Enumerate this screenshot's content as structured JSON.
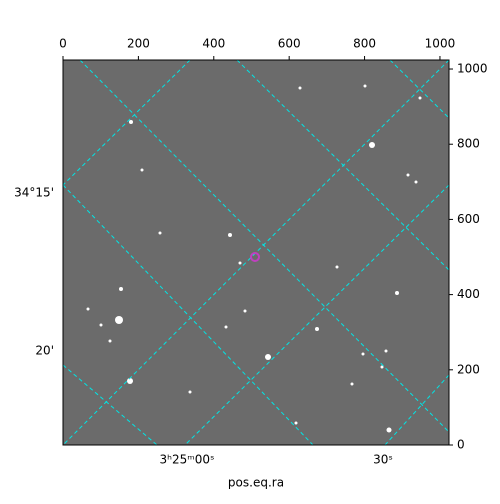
{
  "chart_data": {
    "type": "image",
    "xlabel": "pos.eq.ra",
    "xlim": [
      0,
      1024
    ],
    "ylim": [
      0,
      1024
    ],
    "xticks": [
      0,
      200,
      400,
      600,
      800,
      1000
    ],
    "yticks": [
      0,
      200,
      400,
      600,
      800,
      1000
    ],
    "world_x_labels": [
      "3ʰ25ᵐ00ˢ",
      "30ˢ"
    ],
    "world_y_labels": [
      "34°15'",
      "20'"
    ],
    "grid_color": "#00e5e5"
  }
}
